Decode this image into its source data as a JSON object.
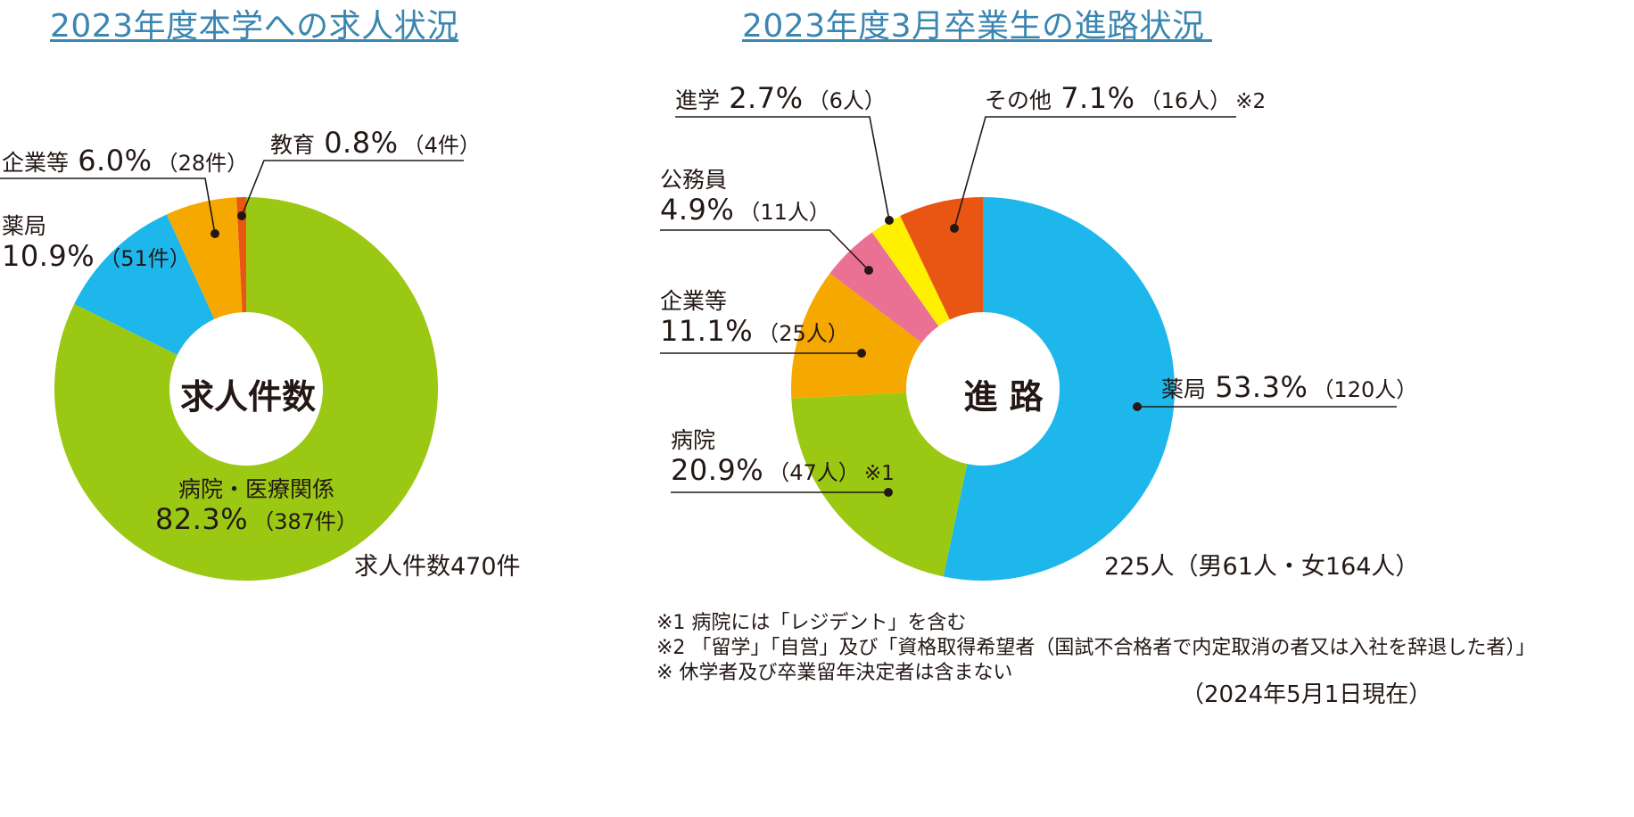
{
  "left": {
    "title": "2023年度本学への求人状況",
    "center": "求人件数",
    "total": "求人件数470件",
    "slices": [
      {
        "name": "病院・医療関係",
        "pct": "82.3%",
        "count": "（387件）",
        "value": 82.3,
        "color": "#9bc812"
      },
      {
        "name": "薬局",
        "pct": "10.9%",
        "count": "（51件）",
        "value": 10.9,
        "color": "#1eb7ec"
      },
      {
        "name": "企業等",
        "pct": "6.0%",
        "count": "（28件）",
        "value": 6.0,
        "color": "#f5a800"
      },
      {
        "name": "教育",
        "pct": "0.8%",
        "count": "（4件）",
        "value": 0.8,
        "color": "#e95513"
      }
    ]
  },
  "right": {
    "title": "2023年度3月卒業生の進路状況",
    "center": "進 路",
    "total": "225人（男61人・女164人）",
    "slices": [
      {
        "name": "薬局",
        "pct": "53.3%",
        "count": "（120人）",
        "note": "",
        "value": 53.3,
        "color": "#1eb7ec"
      },
      {
        "name": "病院",
        "pct": "20.9%",
        "count": "（47人）",
        "note": "※1",
        "value": 20.9,
        "color": "#9bc812"
      },
      {
        "name": "企業等",
        "pct": "11.1%",
        "count": "（25人）",
        "note": "",
        "value": 11.1,
        "color": "#f5a800"
      },
      {
        "name": "公務員",
        "pct": "4.9%",
        "count": "（11人）",
        "note": "",
        "value": 4.9,
        "color": "#ea7094"
      },
      {
        "name": "進学",
        "pct": "2.7%",
        "count": "（6人）",
        "note": "",
        "value": 2.7,
        "color": "#fff000"
      },
      {
        "name": "その他",
        "pct": "7.1%",
        "count": "（16人）",
        "note": "※2",
        "value": 7.1,
        "color": "#e95513"
      }
    ]
  },
  "footnotes": [
    "※1 病院には「レジデント」を含む",
    "※2 「留学」「自営」及び「資格取得希望者（国試不合格者で内定取消の者又は入社を辞退した者）」",
    "※ 休学者及び卒業留年決定者は含まない"
  ],
  "date": "（2024年5月1日現在）",
  "chart_data": [
    {
      "type": "pie",
      "title": "2023年度本学への求人状況",
      "categories": [
        "病院・医療関係",
        "薬局",
        "企業等",
        "教育"
      ],
      "values": [
        82.3,
        10.9,
        6.0,
        0.8
      ],
      "counts": [
        387,
        51,
        28,
        4
      ],
      "unit": "%"
    },
    {
      "type": "pie",
      "title": "2023年度3月卒業生の進路状況",
      "categories": [
        "薬局",
        "病院",
        "企業等",
        "公務員",
        "進学",
        "その他"
      ],
      "values": [
        53.3,
        20.9,
        11.1,
        4.9,
        2.7,
        7.1
      ],
      "counts": [
        120,
        47,
        25,
        11,
        6,
        16
      ],
      "unit": "%"
    }
  ]
}
